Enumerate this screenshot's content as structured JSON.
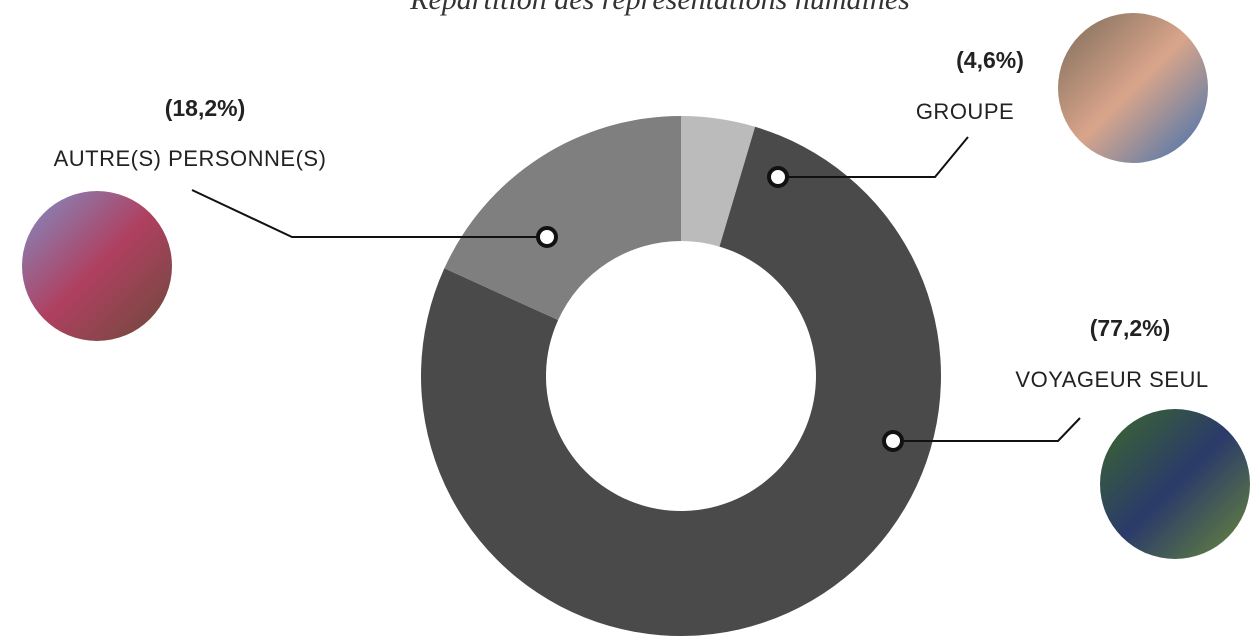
{
  "chart_data": {
    "type": "donut",
    "title": "Répartition des représentations humaines",
    "categories": [
      "GROUPE",
      "VOYAGEUR SEUL",
      "AUTRE(S) PERSONNE(S)"
    ],
    "values": [
      4.6,
      77.2,
      18.2
    ],
    "value_labels": [
      "(4,6%)",
      "(77,2%)",
      "(18,2%)"
    ],
    "colors": [
      "#bbbbbb",
      "#4a4a4a",
      "#7f7f7f"
    ]
  }
}
